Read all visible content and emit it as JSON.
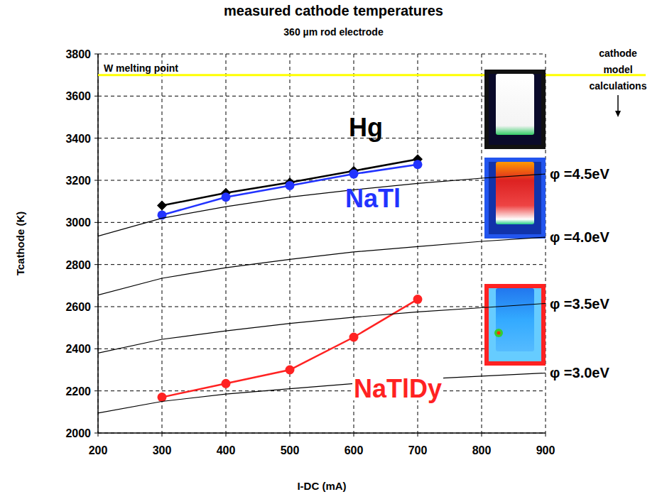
{
  "chart_data": {
    "type": "line",
    "title": "measured cathode temperatures",
    "subtitle": "360 µm rod electrode",
    "x_label": "I-DC (mA)",
    "y_label": "Tcathode (K)",
    "xlim": [
      200,
      900
    ],
    "ylim": [
      2000,
      3800
    ],
    "xticks": [
      200,
      300,
      400,
      500,
      600,
      700,
      800,
      900
    ],
    "yticks": [
      2000,
      2200,
      2400,
      2600,
      2800,
      3000,
      3200,
      3400,
      3600,
      3800
    ],
    "grid": true,
    "hlines": [
      {
        "label": "W melting point",
        "value": 3700,
        "color": "#ffff00"
      }
    ],
    "annotations": [
      {
        "text": "cathode model calculations"
      }
    ],
    "series": [
      {
        "name": "Hg",
        "color": "#000000",
        "marker": "diamond",
        "line_style": "solid",
        "x": [
          300,
          400,
          500,
          600,
          700
        ],
        "values": [
          3080,
          3140,
          3190,
          3245,
          3300
        ]
      },
      {
        "name": "NaTl",
        "color": "#2233ff",
        "marker": "circle",
        "line_style": "solid",
        "x": [
          300,
          400,
          500,
          600,
          700
        ],
        "values": [
          3035,
          3120,
          3175,
          3230,
          3275
        ]
      },
      {
        "name": "NaTlDy",
        "color": "#ff2222",
        "marker": "circle",
        "line_style": "solid",
        "x": [
          300,
          400,
          500,
          600,
          700
        ],
        "values": [
          2170,
          2235,
          2300,
          2455,
          2635
        ]
      },
      {
        "name": "φ =4.5eV",
        "color": "#000000",
        "marker": "none",
        "line_style": "thin",
        "x": [
          200,
          300,
          400,
          500,
          600,
          700,
          800,
          900
        ],
        "values": [
          2935,
          3020,
          3075,
          3120,
          3155,
          3185,
          3210,
          3230
        ]
      },
      {
        "name": "φ =4.0eV",
        "color": "#000000",
        "marker": "none",
        "line_style": "thin",
        "x": [
          200,
          300,
          400,
          500,
          600,
          700,
          800,
          900
        ],
        "values": [
          2655,
          2735,
          2785,
          2825,
          2860,
          2885,
          2910,
          2930
        ]
      },
      {
        "name": "φ =3.5eV",
        "color": "#000000",
        "marker": "none",
        "line_style": "thin",
        "x": [
          200,
          300,
          400,
          500,
          600,
          700,
          800,
          900
        ],
        "values": [
          2380,
          2445,
          2485,
          2520,
          2550,
          2575,
          2595,
          2615
        ]
      },
      {
        "name": "φ =3.0eV",
        "color": "#000000",
        "marker": "none",
        "line_style": "thin",
        "x": [
          200,
          300,
          400,
          500,
          600,
          700,
          800,
          900
        ],
        "values": [
          2095,
          2150,
          2185,
          2210,
          2235,
          2255,
          2270,
          2285
        ]
      }
    ]
  }
}
